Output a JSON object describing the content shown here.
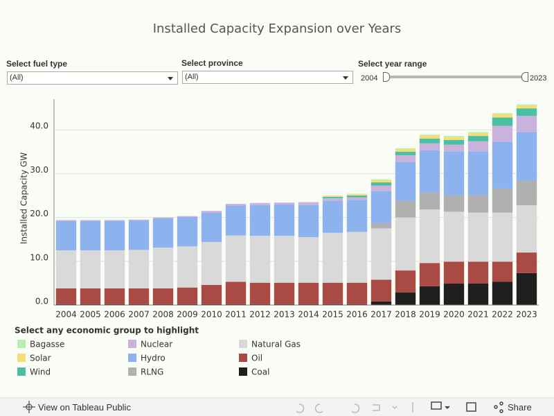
{
  "filters": {
    "fuel_label": "Select fuel type",
    "fuel_value": "(All)",
    "province_label": "Select province",
    "province_value": "(All)",
    "year_label": "Select year range",
    "year_start": "2004",
    "year_end": "2023"
  },
  "toolbar": {
    "view": "View on Tableau Public",
    "share": "Share"
  },
  "chart_data": {
    "type": "stacked_bar",
    "title": "Installed Capacity Expansion over Years",
    "y_label": "Installed Capacity  GW",
    "legend_title": "Select any economic group to highlight",
    "categories": [
      "2004",
      "2005",
      "2006",
      "2007",
      "2008",
      "2009",
      "2010",
      "2011",
      "2012",
      "2013",
      "2014",
      "2015",
      "2016",
      "2017",
      "2018",
      "2019",
      "2020",
      "2021",
      "2022",
      "2023"
    ],
    "ylim": [
      0,
      47
    ],
    "yticks": [
      {
        "value": 0,
        "label": "0.0"
      },
      {
        "value": 10,
        "label": "10.0"
      },
      {
        "value": 20,
        "label": "20.0"
      },
      {
        "value": 30,
        "label": "30.0"
      },
      {
        "value": 40,
        "label": "40.0"
      }
    ],
    "grid": true,
    "series": [
      {
        "name": "Coal",
        "color": "#1f1f1f",
        "values": [
          0.2,
          0.2,
          0.2,
          0.2,
          0.2,
          0.2,
          0.2,
          0.2,
          0.2,
          0.2,
          0.2,
          0.2,
          0.2,
          0.8,
          2.9,
          4.3,
          4.9,
          4.9,
          5.3,
          7.3
        ]
      },
      {
        "name": "Oil",
        "color": "#a94a44",
        "values": [
          3.6,
          3.6,
          3.6,
          3.6,
          3.6,
          3.8,
          4.4,
          5.1,
          4.9,
          4.9,
          4.9,
          4.9,
          4.9,
          5.0,
          5.0,
          5.3,
          5.0,
          5.0,
          4.6,
          4.7
        ]
      },
      {
        "name": "Natural Gas",
        "color": "#d9d9d9",
        "values": [
          8.7,
          8.7,
          8.7,
          8.8,
          9.3,
          9.4,
          9.8,
          10.6,
          10.7,
          10.7,
          10.4,
          11.4,
          11.6,
          11.7,
          12.1,
          12.2,
          11.4,
          11.2,
          11.2,
          10.8
        ]
      },
      {
        "name": "RLNG",
        "color": "#b0b0b0",
        "values": [
          0,
          0,
          0,
          0,
          0,
          0,
          0,
          0,
          0,
          0,
          0,
          0,
          0,
          1.2,
          3.8,
          3.9,
          3.8,
          4.0,
          5.5,
          5.6
        ]
      },
      {
        "name": "Hydro",
        "color": "#8cb3ee",
        "values": [
          6.7,
          6.7,
          6.7,
          6.7,
          6.7,
          6.7,
          6.7,
          6.8,
          7.0,
          7.2,
          7.3,
          7.3,
          7.3,
          7.3,
          8.8,
          9.6,
          10.0,
          10.0,
          10.7,
          11.1
        ]
      },
      {
        "name": "Nuclear",
        "color": "#c9b3dc",
        "values": [
          0.2,
          0.2,
          0.2,
          0.2,
          0.2,
          0.2,
          0.4,
          0.4,
          0.5,
          0.4,
          0.7,
          0.6,
          0.6,
          1.3,
          1.6,
          1.6,
          1.5,
          2.3,
          3.6,
          3.7
        ]
      },
      {
        "name": "Wind",
        "color": "#4bbfa4",
        "values": [
          0,
          0,
          0,
          0,
          0,
          0,
          0,
          0,
          0,
          0,
          0,
          0.3,
          0.4,
          0.7,
          0.8,
          1.1,
          1.1,
          1.2,
          1.9,
          1.7
        ]
      },
      {
        "name": "Solar",
        "color": "#f5dd77",
        "values": [
          0,
          0,
          0,
          0,
          0,
          0,
          0,
          0,
          0,
          0,
          0,
          0.2,
          0.3,
          0.5,
          0.6,
          0.7,
          0.7,
          0.7,
          0.8,
          0.7
        ]
      },
      {
        "name": "Bagasse",
        "color": "#b5f0b0",
        "values": [
          0,
          0,
          0,
          0,
          0,
          0,
          0,
          0,
          0,
          0,
          0,
          0.1,
          0.1,
          0.2,
          0.2,
          0.2,
          0.2,
          0.2,
          0.2,
          0.2
        ]
      }
    ]
  }
}
